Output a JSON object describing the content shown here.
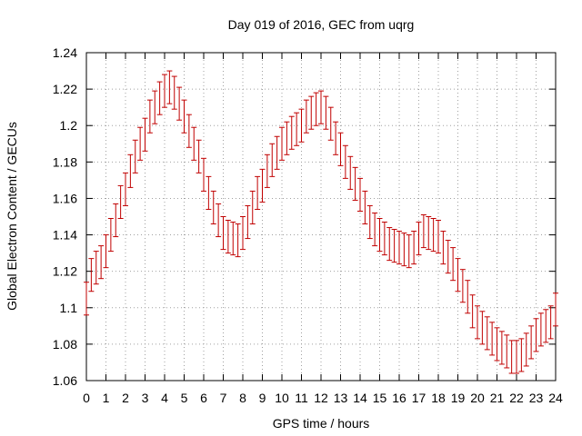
{
  "chart_data": {
    "type": "scatter",
    "title": "Day 019 of 2016, GEC from uqrg",
    "xlabel": "GPS time / hours",
    "ylabel": "Global Electron Content / GECUs",
    "xlim": [
      0,
      24
    ],
    "ylim": [
      1.06,
      1.24
    ],
    "xticks": [
      "0",
      "1",
      "2",
      "3",
      "4",
      "5",
      "6",
      "7",
      "8",
      "9",
      "10",
      "11",
      "12",
      "13",
      "14",
      "15",
      "16",
      "17",
      "18",
      "19",
      "20",
      "21",
      "22",
      "23",
      "24"
    ],
    "yticks": [
      "1.06",
      "1.08",
      "1.1",
      "1.12",
      "1.14",
      "1.16",
      "1.18",
      "1.2",
      "1.22",
      "1.24"
    ],
    "grid": true,
    "series_color": "#c00000",
    "error": 0.009,
    "series": [
      {
        "x": [
          0.0,
          0.25,
          0.5,
          0.75,
          1.0,
          1.25,
          1.5,
          1.75,
          2.0,
          2.25,
          2.5,
          2.75,
          3.0,
          3.25,
          3.5,
          3.75,
          4.0,
          4.25,
          4.5,
          4.75,
          5.0,
          5.25,
          5.5,
          5.75,
          6.0,
          6.25,
          6.5,
          6.75,
          7.0,
          7.25,
          7.5,
          7.75,
          8.0,
          8.25,
          8.5,
          8.75,
          9.0,
          9.25,
          9.5,
          9.75,
          10.0,
          10.25,
          10.5,
          10.75,
          11.0,
          11.25,
          11.5,
          11.75,
          12.0,
          12.25,
          12.5,
          12.75,
          13.0,
          13.25,
          13.5,
          13.75,
          14.0,
          14.25,
          14.5,
          14.75,
          15.0,
          15.25,
          15.5,
          15.75,
          16.0,
          16.25,
          16.5,
          16.75,
          17.0,
          17.25,
          17.5,
          17.75,
          18.0,
          18.25,
          18.5,
          18.75,
          19.0,
          19.25,
          19.5,
          19.75,
          20.0,
          20.25,
          20.5,
          20.75,
          21.0,
          21.25,
          21.5,
          21.75,
          22.0,
          22.25,
          22.5,
          22.75,
          23.0,
          23.25,
          23.5,
          23.75,
          24.0
        ],
        "y": [
          1.105,
          1.118,
          1.122,
          1.125,
          1.131,
          1.14,
          1.148,
          1.158,
          1.165,
          1.175,
          1.183,
          1.19,
          1.195,
          1.205,
          1.21,
          1.215,
          1.219,
          1.221,
          1.218,
          1.212,
          1.205,
          1.197,
          1.19,
          1.183,
          1.173,
          1.163,
          1.155,
          1.148,
          1.141,
          1.139,
          1.138,
          1.137,
          1.141,
          1.147,
          1.155,
          1.163,
          1.167,
          1.175,
          1.181,
          1.185,
          1.19,
          1.193,
          1.196,
          1.198,
          1.2,
          1.205,
          1.207,
          1.209,
          1.21,
          1.207,
          1.201,
          1.193,
          1.187,
          1.18,
          1.174,
          1.168,
          1.162,
          1.155,
          1.147,
          1.143,
          1.14,
          1.138,
          1.135,
          1.134,
          1.133,
          1.132,
          1.131,
          1.133,
          1.138,
          1.142,
          1.141,
          1.14,
          1.139,
          1.133,
          1.128,
          1.124,
          1.118,
          1.112,
          1.106,
          1.098,
          1.092,
          1.089,
          1.086,
          1.083,
          1.08,
          1.078,
          1.076,
          1.073,
          1.073,
          1.074,
          1.077,
          1.081,
          1.085,
          1.088,
          1.09,
          1.092,
          1.099
        ]
      }
    ]
  }
}
